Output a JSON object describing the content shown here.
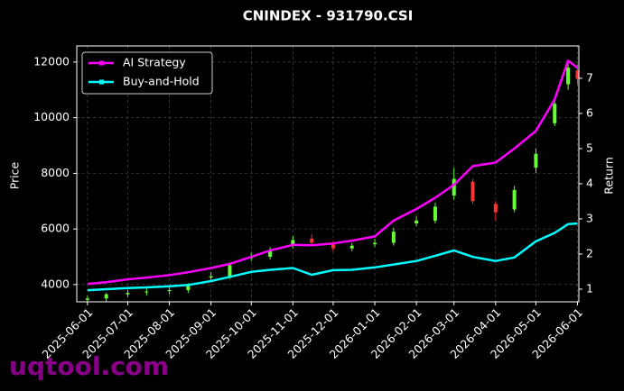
{
  "chart_data": {
    "type": "candlestick",
    "title": "CNINDEX - 931790.CSI",
    "y_label": "Price",
    "y2_label": "Return",
    "watermark": "uqtool.com",
    "x": [
      "2025-06-01",
      "2025-06-15",
      "2025-07-01",
      "2025-07-15",
      "2025-08-01",
      "2025-08-15",
      "2025-09-01",
      "2025-09-15",
      "2025-10-01",
      "2025-10-15",
      "2025-11-01",
      "2025-11-15",
      "2025-12-01",
      "2025-12-15",
      "2026-01-01",
      "2026-01-15",
      "2026-02-01",
      "2026-02-15",
      "2026-03-01",
      "2026-03-15",
      "2026-04-01",
      "2026-04-15",
      "2026-05-01",
      "2026-05-15",
      "2026-05-25",
      "2026-06-01"
    ],
    "open": [
      3450,
      3500,
      3650,
      3720,
      3780,
      3800,
      4250,
      4300,
      4950,
      5000,
      5400,
      5650,
      5450,
      5300,
      5450,
      5500,
      6200,
      6300,
      7200,
      7700,
      6900,
      6700,
      8200,
      9800,
      11200,
      11700
    ],
    "high": [
      3600,
      3700,
      3800,
      3850,
      3900,
      4050,
      4450,
      4800,
      5150,
      5350,
      5750,
      5800,
      5550,
      5500,
      5650,
      6050,
      6450,
      6950,
      8200,
      7800,
      7000,
      7550,
      8900,
      10700,
      12000,
      11900
    ],
    "low": [
      3350,
      3400,
      3550,
      3600,
      3650,
      3700,
      4150,
      4200,
      4850,
      4900,
      5300,
      5400,
      5200,
      5200,
      5350,
      5400,
      6100,
      6200,
      7050,
      6900,
      6300,
      6600,
      8000,
      9700,
      11000,
      11200
    ],
    "close": [
      3500,
      3650,
      3700,
      3750,
      3800,
      3950,
      4300,
      4700,
      5000,
      5200,
      5600,
      5500,
      5300,
      5400,
      5500,
      5900,
      6300,
      6800,
      7800,
      7000,
      6600,
      7400,
      8700,
      10500,
      11800,
      11400
    ],
    "up_color": "#66ff33",
    "down_color": "#ff3333",
    "series": [
      {
        "name": "AI Strategy",
        "color": "#ff00ff",
        "axis": "y2",
        "values": [
          1.15,
          1.2,
          1.28,
          1.33,
          1.4,
          1.48,
          1.6,
          1.72,
          1.92,
          2.1,
          2.26,
          2.25,
          2.3,
          2.38,
          2.5,
          2.95,
          3.28,
          3.6,
          3.97,
          4.5,
          4.6,
          5.0,
          5.5,
          6.4,
          7.5,
          7.3
        ]
      },
      {
        "name": "Buy-and-Hold",
        "color": "#00ffff",
        "axis": "y2",
        "values": [
          0.97,
          1.0,
          1.03,
          1.05,
          1.08,
          1.12,
          1.23,
          1.35,
          1.49,
          1.55,
          1.6,
          1.41,
          1.54,
          1.55,
          1.62,
          1.7,
          1.8,
          1.95,
          2.1,
          1.92,
          1.8,
          1.9,
          2.36,
          2.6,
          2.85,
          2.87
        ]
      }
    ],
    "xlim": [
      "2025-05-24",
      "2026-06-02"
    ],
    "xticks": [
      "2025-06-01",
      "2025-07-01",
      "2025-08-01",
      "2025-09-01",
      "2025-10-01",
      "2025-11-01",
      "2025-12-01",
      "2026-01-01",
      "2026-02-01",
      "2026-03-01",
      "2026-04-01",
      "2026-05-01",
      "2026-06-01"
    ],
    "ylim": [
      3380,
      12580
    ],
    "yticks": [
      4000,
      6000,
      8000,
      10000,
      12000
    ],
    "y2lim": [
      0.64,
      7.92
    ],
    "y2ticks": [
      1,
      2,
      3,
      4,
      5,
      6,
      7
    ],
    "grid": true,
    "legend": "upper left"
  }
}
